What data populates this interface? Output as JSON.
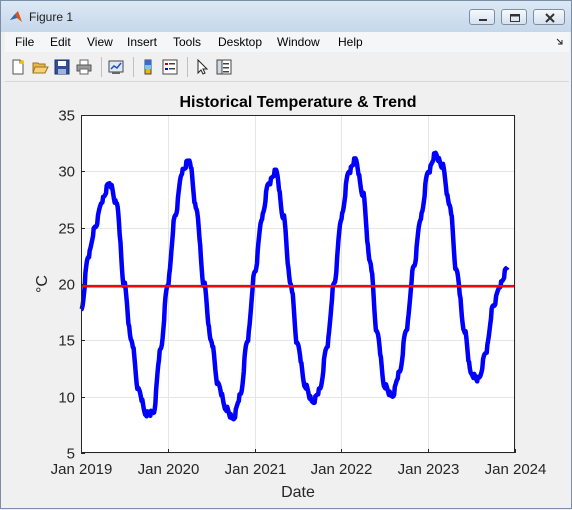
{
  "window": {
    "title": "Figure 1"
  },
  "menu": [
    "File",
    "Edit",
    "View",
    "Insert",
    "Tools",
    "Desktop",
    "Window",
    "Help"
  ],
  "toolbar_icons": [
    "new-figure-icon",
    "open-file-icon",
    "save-icon",
    "print-icon",
    "link-plot-icon",
    "colorbar-icon",
    "legend-icon",
    "pointer-icon",
    "property-editor-icon"
  ],
  "colors": {
    "temperature": "#0000ff",
    "trend": "#ff0000"
  },
  "chart_data": {
    "type": "line",
    "title": "Historical Temperature & Trend",
    "xlabel": "Date",
    "ylabel": "°C",
    "ylim": [
      5,
      35
    ],
    "yticks": [
      "5",
      "10",
      "15",
      "20",
      "25",
      "30",
      "35"
    ],
    "xlim": [
      "2019-01-01",
      "2024-01-01"
    ],
    "xticks": [
      "Jan 2019",
      "Jan 2020",
      "Jan 2021",
      "Jan 2022",
      "Jan 2023",
      "Jan 2024"
    ],
    "grid": true,
    "series": [
      {
        "role": "daily temperature",
        "color": "#0000ff",
        "points": [
          [
            "2019-01-01",
            17.5
          ],
          [
            "2019-02-01",
            22.5
          ],
          [
            "2019-03-01",
            25.0
          ],
          [
            "2019-04-01",
            27.5
          ],
          [
            "2019-05-01",
            29.0
          ],
          [
            "2019-06-01",
            27.0
          ],
          [
            "2019-07-01",
            20.0
          ],
          [
            "2019-08-01",
            15.0
          ],
          [
            "2019-09-01",
            10.5
          ],
          [
            "2019-10-01",
            8.5
          ],
          [
            "2019-11-01",
            8.5
          ],
          [
            "2019-12-01",
            14.0
          ],
          [
            "2020-01-01",
            20.0
          ],
          [
            "2020-02-01",
            26.0
          ],
          [
            "2020-03-01",
            30.0
          ],
          [
            "2020-04-01",
            31.0
          ],
          [
            "2020-05-01",
            26.5
          ],
          [
            "2020-06-01",
            20.0
          ],
          [
            "2020-07-01",
            15.0
          ],
          [
            "2020-08-01",
            11.0
          ],
          [
            "2020-09-01",
            9.0
          ],
          [
            "2020-10-01",
            8.0
          ],
          [
            "2020-11-01",
            10.0
          ],
          [
            "2020-12-01",
            15.0
          ],
          [
            "2021-01-01",
            21.0
          ],
          [
            "2021-02-01",
            26.0
          ],
          [
            "2021-03-01",
            29.0
          ],
          [
            "2021-04-01",
            30.0
          ],
          [
            "2021-05-01",
            26.0
          ],
          [
            "2021-06-01",
            20.0
          ],
          [
            "2021-07-01",
            14.5
          ],
          [
            "2021-08-01",
            11.0
          ],
          [
            "2021-09-01",
            9.5
          ],
          [
            "2021-10-01",
            10.5
          ],
          [
            "2021-11-01",
            14.5
          ],
          [
            "2021-12-01",
            20.0
          ],
          [
            "2022-01-01",
            26.0
          ],
          [
            "2022-02-01",
            30.0
          ],
          [
            "2022-03-01",
            31.0
          ],
          [
            "2022-04-01",
            28.0
          ],
          [
            "2022-05-01",
            22.0
          ],
          [
            "2022-06-01",
            15.5
          ],
          [
            "2022-07-01",
            11.0
          ],
          [
            "2022-08-01",
            10.0
          ],
          [
            "2022-09-01",
            12.0
          ],
          [
            "2022-10-01",
            16.0
          ],
          [
            "2022-11-01",
            21.5
          ],
          [
            "2022-12-01",
            26.0
          ],
          [
            "2023-01-01",
            30.0
          ],
          [
            "2023-02-01",
            31.5
          ],
          [
            "2023-03-01",
            30.5
          ],
          [
            "2023-04-01",
            27.0
          ],
          [
            "2023-05-01",
            21.0
          ],
          [
            "2023-06-01",
            16.0
          ],
          [
            "2023-07-01",
            12.0
          ],
          [
            "2023-08-01",
            11.5
          ],
          [
            "2023-09-01",
            14.0
          ],
          [
            "2023-10-01",
            18.0
          ],
          [
            "2023-11-01",
            20.0
          ],
          [
            "2023-12-01",
            21.5
          ]
        ]
      },
      {
        "role": "trend",
        "color": "#ff0000",
        "points": [
          [
            "2019-01-01",
            19.8
          ],
          [
            "2024-01-01",
            19.8
          ]
        ]
      }
    ]
  }
}
